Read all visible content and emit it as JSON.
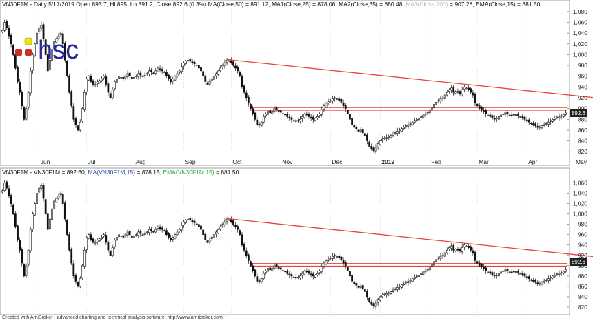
{
  "header": {
    "top_left": "VN30F1M - Daily 5/17/2019 Open 893.7, Hi 895, Lo 891.2, Close 892.6 (0.3%) MA(Close,50) = 891.12, MA1(Close,25) = 878.06, MA2(Close,35) = 880.48,",
    "top_faded": "MA3(Close,200)",
    "top_right": "= 907.28, EMA(Close,15) = 881.50",
    "bottom_symbol": "VN30F1M - VN30F1M = 892.60,",
    "bottom_ma": "MA(VN30F1M,15)",
    "bottom_ma_val": "= 878.15,",
    "bottom_ema": "EMA(VN30F1M,15)",
    "bottom_ema_val": "= 881.50"
  },
  "logo": {
    "text": "hsc"
  },
  "price_badge": "892.6",
  "footer": "Created with AmiBroker - advanced charting and technical analysis software. http://www.amibroker.com",
  "colors": {
    "trendline": "#e8413a",
    "ma": "#2244aa",
    "ema": "#22aa33",
    "faded": "#bbbbbb",
    "logo_text": "#2a2aa0",
    "logo_yellow": "#f2e600",
    "logo_red": "#c8312a"
  },
  "chart_data": [
    {
      "type": "candlestick",
      "panel": "top",
      "title": "VN30F1M - Daily",
      "ylim": [
        810,
        1085
      ],
      "yticks": [
        820,
        840,
        860,
        880,
        900,
        920,
        940,
        960,
        980,
        1000,
        1020,
        1040,
        1060,
        1080
      ],
      "ytick_labels": [
        "820",
        "840",
        "860",
        "880",
        "900",
        "920",
        "940",
        "960",
        "980",
        "1,000",
        "1,020",
        "1,040",
        "1,060",
        "1,080"
      ],
      "month_labels": [
        "Jun",
        "Jul",
        "Aug",
        "Sep",
        "Oct",
        "Nov",
        "Dec",
        "2019",
        "Feb",
        "Mar",
        "Apr",
        "May"
      ],
      "month_starts": [
        17,
        39,
        61,
        84,
        106,
        129,
        152,
        175,
        198,
        220,
        243,
        265
      ],
      "close_series": [
        1045,
        1060,
        1050,
        1035,
        1020,
        1000,
        975,
        950,
        930,
        905,
        880,
        900,
        930,
        970,
        1000,
        1020,
        1040,
        1050,
        1055,
        1030,
        1000,
        970,
        990,
        1010,
        1025,
        1030,
        1035,
        1040,
        1020,
        990,
        960,
        930,
        905,
        880,
        870,
        860,
        875,
        900,
        930,
        955,
        960,
        950,
        945,
        945,
        950,
        952,
        955,
        960,
        945,
        930,
        920,
        935,
        950,
        955,
        960,
        958,
        955,
        960,
        965,
        960,
        955,
        958,
        960,
        965,
        962,
        960,
        962,
        965,
        970,
        968,
        965,
        970,
        975,
        972,
        970,
        968,
        960,
        955,
        950,
        955,
        960,
        965,
        970,
        978,
        985,
        988,
        990,
        988,
        985,
        983,
        980,
        975,
        970,
        960,
        950,
        945,
        950,
        955,
        960,
        965,
        970,
        975,
        980,
        985,
        990,
        990,
        985,
        980,
        975,
        970,
        960,
        940,
        930,
        920,
        910,
        900,
        890,
        880,
        870,
        870,
        875,
        885,
        890,
        895,
        892,
        895,
        900,
        898,
        895,
        893,
        890,
        888,
        885,
        882,
        880,
        878,
        876,
        878,
        880,
        885,
        890,
        888,
        885,
        883,
        880,
        882,
        885,
        890,
        898,
        905,
        910,
        913,
        915,
        918,
        920,
        918,
        915,
        912,
        905,
        900,
        890,
        880,
        870,
        865,
        862,
        858,
        860,
        855,
        850,
        840,
        830,
        825,
        822,
        828,
        835,
        840,
        843,
        845,
        846,
        848,
        850,
        853,
        855,
        858,
        860,
        863,
        865,
        868,
        870,
        872,
        875,
        878,
        880,
        882,
        885,
        888,
        890,
        893,
        898,
        903,
        908,
        912,
        915,
        918,
        920,
        925,
        930,
        935,
        938,
        930,
        932,
        930,
        928,
        935,
        940,
        938,
        935,
        930,
        925,
        910,
        905,
        900,
        898,
        895,
        890,
        888,
        885,
        883,
        880,
        882,
        885,
        888,
        890,
        892,
        890,
        888,
        887,
        888,
        889,
        887,
        885,
        882,
        880,
        878,
        875,
        872,
        870,
        868,
        865,
        866,
        868,
        870,
        872,
        875,
        878,
        880,
        882,
        884,
        885,
        887,
        889,
        892
      ],
      "resistance_band": [
        897,
        902
      ],
      "trendline": {
        "from": [
          104,
          991
        ],
        "to": [
          294,
          912
        ]
      },
      "last_price": 892.6
    },
    {
      "type": "candlestick",
      "panel": "bottom",
      "title": "VN30F1M",
      "ylim": [
        808,
        1070
      ],
      "yticks": [
        820,
        840,
        860,
        880,
        900,
        920,
        940,
        960,
        980,
        1000,
        1020,
        1040,
        1060
      ],
      "ytick_labels": [
        "820",
        "840",
        "860",
        "880",
        "900",
        "920",
        "940",
        "960",
        "980",
        "1,000",
        "1,020",
        "1,040",
        "1,060"
      ],
      "close_series": [
        1045,
        1060,
        1050,
        1035,
        1020,
        1000,
        975,
        950,
        930,
        905,
        880,
        900,
        930,
        970,
        1000,
        1020,
        1040,
        1050,
        1055,
        1030,
        1000,
        970,
        990,
        1010,
        1025,
        1030,
        1035,
        1040,
        1020,
        990,
        960,
        930,
        905,
        880,
        870,
        860,
        875,
        900,
        930,
        955,
        960,
        950,
        945,
        945,
        950,
        952,
        955,
        960,
        945,
        930,
        920,
        935,
        950,
        955,
        960,
        958,
        955,
        960,
        965,
        960,
        955,
        958,
        960,
        965,
        962,
        960,
        962,
        965,
        970,
        968,
        965,
        970,
        975,
        972,
        970,
        968,
        960,
        955,
        950,
        955,
        960,
        965,
        970,
        978,
        985,
        988,
        990,
        988,
        985,
        983,
        980,
        975,
        970,
        960,
        950,
        945,
        950,
        955,
        960,
        965,
        970,
        975,
        980,
        985,
        990,
        990,
        985,
        980,
        975,
        970,
        960,
        940,
        930,
        920,
        910,
        900,
        890,
        880,
        870,
        870,
        875,
        885,
        890,
        895,
        892,
        895,
        900,
        898,
        895,
        893,
        890,
        888,
        885,
        882,
        880,
        878,
        876,
        878,
        880,
        885,
        890,
        888,
        885,
        883,
        880,
        882,
        885,
        890,
        898,
        905,
        910,
        913,
        915,
        918,
        920,
        918,
        915,
        912,
        905,
        900,
        890,
        880,
        870,
        865,
        862,
        858,
        860,
        855,
        850,
        840,
        830,
        825,
        822,
        828,
        835,
        840,
        843,
        845,
        846,
        848,
        850,
        853,
        855,
        858,
        860,
        863,
        865,
        868,
        870,
        872,
        875,
        878,
        880,
        882,
        885,
        888,
        890,
        893,
        898,
        903,
        908,
        912,
        915,
        918,
        920,
        925,
        930,
        935,
        938,
        930,
        932,
        930,
        928,
        935,
        940,
        938,
        935,
        930,
        925,
        910,
        905,
        900,
        898,
        895,
        890,
        888,
        885,
        883,
        880,
        882,
        885,
        888,
        890,
        892,
        890,
        888,
        887,
        888,
        889,
        887,
        885,
        882,
        880,
        878,
        875,
        872,
        870,
        868,
        865,
        866,
        868,
        870,
        872,
        875,
        878,
        880,
        882,
        884,
        885,
        887,
        889,
        892
      ],
      "resistance_band": [
        899,
        904
      ],
      "trendline": {
        "from": [
          104,
          991
        ],
        "to": [
          294,
          909
        ]
      },
      "last_price": 892.6
    }
  ]
}
